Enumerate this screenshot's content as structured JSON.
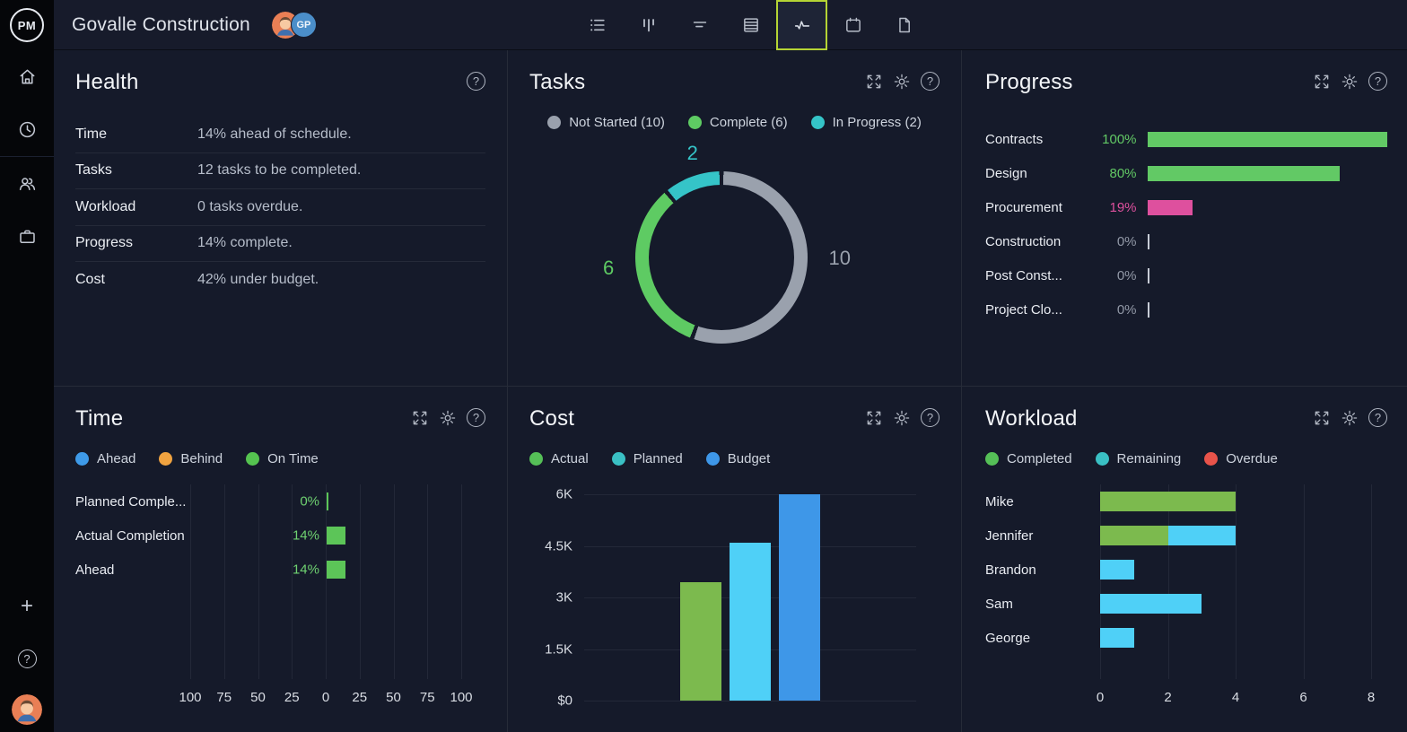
{
  "app": {
    "brand": "PM",
    "title": "Govalle Construction",
    "avatar_badge": "GP"
  },
  "colors": {
    "accent": "#b5d434",
    "panel_bg": "#151a2a",
    "grid_line": "#232838",
    "zero_tick": "#c7ccd6",
    "muted_value": "#9299a7"
  },
  "topbar": {
    "views": [
      "list-view",
      "board-view",
      "gantt-view",
      "sheet-view",
      "dashboard-view",
      "calendar-view",
      "docs-view"
    ],
    "selected_view": "dashboard-view"
  },
  "sidebar": {
    "top_items": [
      "home",
      "time",
      "team",
      "portfolio"
    ],
    "bottom_items": [
      "add",
      "help",
      "profile"
    ]
  },
  "panels": {
    "health": {
      "title": "Health",
      "rows": [
        {
          "label": "Time",
          "value": "14% ahead of schedule."
        },
        {
          "label": "Tasks",
          "value": "12 tasks to be completed."
        },
        {
          "label": "Workload",
          "value": "0 tasks overdue."
        },
        {
          "label": "Progress",
          "value": "14% complete."
        },
        {
          "label": "Cost",
          "value": "42% under budget."
        }
      ]
    },
    "tasks": {
      "title": "Tasks"
    },
    "progress": {
      "title": "Progress"
    },
    "time": {
      "title": "Time"
    },
    "cost": {
      "title": "Cost"
    },
    "workload": {
      "title": "Workload"
    }
  },
  "chart_data": [
    {
      "id": "tasks",
      "type": "pie",
      "donut": true,
      "title": "Tasks",
      "labels": [
        "Not Started",
        "Complete",
        "In Progress"
      ],
      "values": [
        10,
        6,
        2
      ],
      "colors": [
        "#9aa1ad",
        "#5ecb63",
        "#35c4c8"
      ],
      "legend": [
        {
          "label": "Not Started (10)",
          "color": "#9aa1ad"
        },
        {
          "label": "Complete (6)",
          "color": "#5ecb63"
        },
        {
          "label": "In Progress (2)",
          "color": "#35c4c8"
        }
      ],
      "legend_position": "top-center"
    },
    {
      "id": "progress",
      "type": "bar",
      "orientation": "horizontal",
      "title": "Progress",
      "categories": [
        "Contracts",
        "Design",
        "Procurement",
        "Construction",
        "Post Const...",
        "Project Clo..."
      ],
      "values": [
        100,
        80,
        19,
        0,
        0,
        0
      ],
      "value_labels": [
        "100%",
        "80%",
        "19%",
        "0%",
        "0%",
        "0%"
      ],
      "colors": [
        "#62c965",
        "#62c965",
        "#de509e",
        "#62c965",
        "#62c965",
        "#62c965"
      ],
      "xlim": [
        0,
        100
      ],
      "grid": false
    },
    {
      "id": "time",
      "type": "bar",
      "orientation": "horizontal",
      "diverging": true,
      "title": "Time",
      "categories": [
        "Planned Comple...",
        "Actual Completion",
        "Ahead"
      ],
      "values": [
        0,
        14,
        14
      ],
      "value_labels": [
        "0%",
        "14%",
        "14%"
      ],
      "bar_color": "#5cc558",
      "value_color": "#6fd271",
      "legend": [
        {
          "label": "Ahead",
          "color": "#3e9ae8"
        },
        {
          "label": "Behind",
          "color": "#f0a340"
        },
        {
          "label": "On Time",
          "color": "#55c350"
        }
      ],
      "xticks": [
        "100",
        "75",
        "50",
        "25",
        "0",
        "25",
        "50",
        "75",
        "100"
      ],
      "xlim": [
        -100,
        100
      ],
      "grid": true
    },
    {
      "id": "cost",
      "type": "bar",
      "title": "Cost",
      "categories": [
        "Actual",
        "Planned",
        "Budget"
      ],
      "values": [
        3450,
        4600,
        6000
      ],
      "colors": [
        "#7cba4e",
        "#4fd0f7",
        "#3e97e8"
      ],
      "legend": [
        {
          "label": "Actual",
          "color": "#55bf57"
        },
        {
          "label": "Planned",
          "color": "#3ac0c4"
        },
        {
          "label": "Budget",
          "color": "#3e97e8"
        }
      ],
      "yticks": {
        "values": [
          0,
          1500,
          3000,
          4500,
          6000
        ],
        "labels": [
          "$0",
          "1.5K",
          "3K",
          "4.5K",
          "6K"
        ]
      },
      "ylim": [
        0,
        6000
      ],
      "grid": true
    },
    {
      "id": "workload",
      "type": "bar",
      "orientation": "horizontal",
      "stacked": true,
      "title": "Workload",
      "categories": [
        "Mike",
        "Jennifer",
        "Brandon",
        "Sam",
        "George"
      ],
      "series": [
        {
          "name": "Completed",
          "color": "#7cba4e",
          "values": [
            4,
            2,
            0,
            0,
            0
          ]
        },
        {
          "name": "Remaining",
          "color": "#4fd0f7",
          "values": [
            0,
            2,
            1,
            3,
            1
          ]
        },
        {
          "name": "Overdue",
          "color": "#e8534a",
          "values": [
            0,
            0,
            0,
            0,
            0
          ]
        }
      ],
      "legend": [
        {
          "label": "Completed",
          "color": "#55bf57"
        },
        {
          "label": "Remaining",
          "color": "#3ac0c4"
        },
        {
          "label": "Overdue",
          "color": "#e8534a"
        }
      ],
      "xticks": [
        "0",
        "2",
        "4",
        "6",
        "8"
      ],
      "xlim": [
        0,
        8
      ],
      "grid": true
    }
  ]
}
